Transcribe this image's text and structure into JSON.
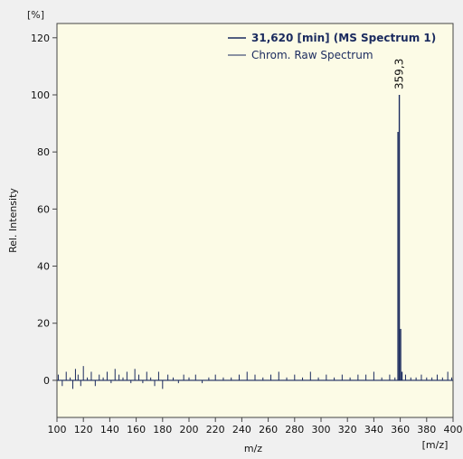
{
  "chart_data": {
    "type": "line",
    "ylabel": "Rel. Intensity",
    "yunit": "[%]",
    "xlabel": "m/z",
    "xunit": "[m/z]",
    "xlim": [
      100,
      400
    ],
    "ylim": [
      -13,
      125
    ],
    "xticks": [
      100,
      120,
      140,
      160,
      180,
      200,
      220,
      240,
      260,
      280,
      300,
      320,
      340,
      360,
      380,
      400
    ],
    "yticks": [
      0,
      20,
      40,
      60,
      80,
      100,
      120
    ],
    "grid": false,
    "legend_position": "top-right",
    "series": [
      {
        "name": "31,620 [min] (MS Spectrum 1)",
        "color": "#1a2a5e",
        "x": [
          358.3,
          359.3,
          360.3,
          361.3
        ],
        "values": [
          87,
          100,
          18,
          3
        ]
      },
      {
        "name": "Chrom. Raw Spectrum",
        "color": "#1a2a5e",
        "x": [
          101,
          104,
          107,
          110,
          112,
          114,
          116,
          118,
          120,
          123,
          126,
          129,
          132,
          135,
          138,
          141,
          144,
          147,
          150,
          153,
          156,
          159,
          162,
          165,
          168,
          171,
          174,
          177,
          180,
          184,
          188,
          192,
          196,
          200,
          205,
          210,
          215,
          220,
          226,
          232,
          238,
          244,
          250,
          256,
          262,
          268,
          274,
          280,
          286,
          292,
          298,
          304,
          310,
          316,
          322,
          328,
          334,
          340,
          346,
          352,
          356,
          364,
          368,
          372,
          376,
          380,
          384,
          388,
          392,
          396,
          399
        ],
        "values": [
          2,
          -2,
          3,
          1,
          -3,
          4,
          2,
          -2,
          5,
          1,
          3,
          -2,
          2,
          1,
          3,
          -1,
          4,
          2,
          1,
          3,
          -1,
          4,
          2,
          -1,
          3,
          1,
          -2,
          3,
          -3,
          2,
          1,
          -1,
          2,
          1,
          2,
          -1,
          1,
          2,
          1,
          1,
          2,
          3,
          2,
          1,
          2,
          3,
          1,
          2,
          1,
          3,
          1,
          2,
          1,
          2,
          1,
          2,
          2,
          3,
          1,
          2,
          1,
          2,
          1,
          1,
          2,
          1,
          1,
          2,
          1,
          3,
          1
        ]
      }
    ],
    "annotations": [
      {
        "text": "359,3",
        "x": 359.3,
        "y": 100
      }
    ]
  }
}
